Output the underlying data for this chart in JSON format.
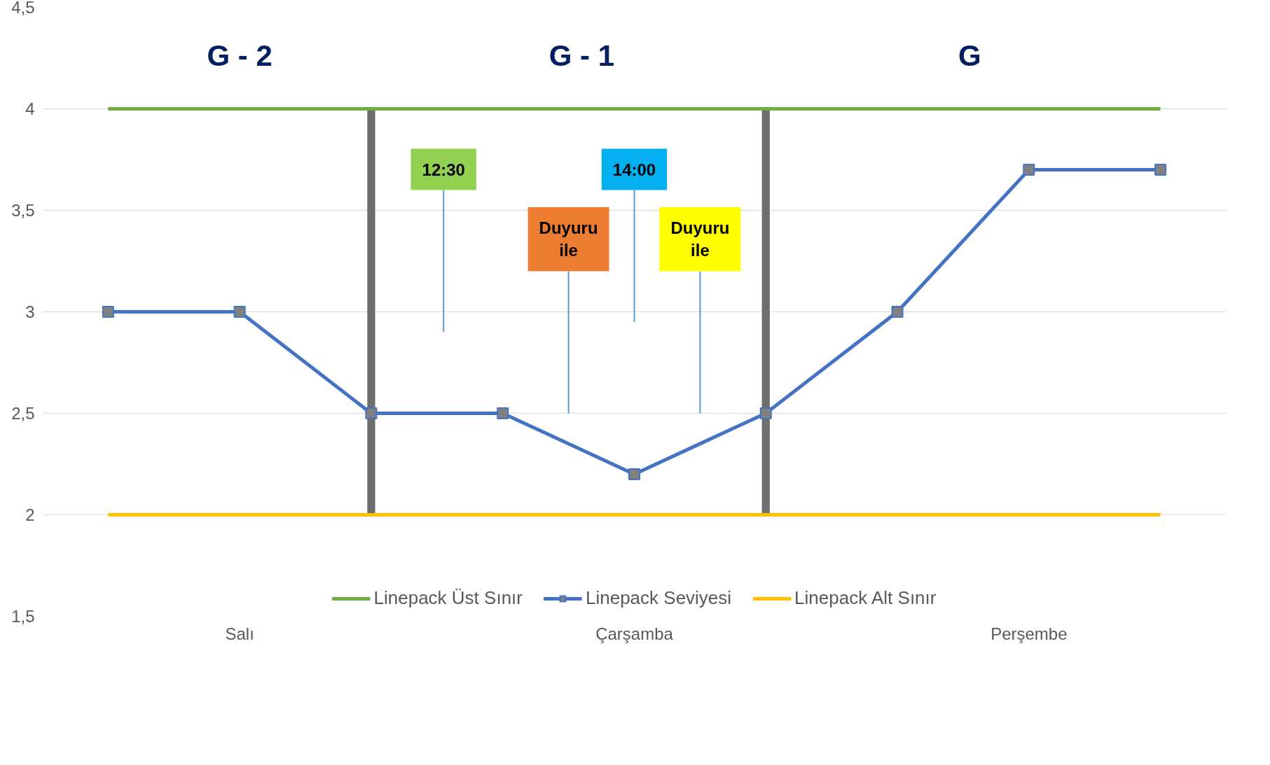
{
  "chart_data": {
    "type": "line",
    "categories": [
      null,
      "Salı",
      null,
      null,
      "Çarşamba",
      null,
      null,
      "Perşembe",
      null
    ],
    "ylim": [
      1.5,
      4.5
    ],
    "yticks": [
      {
        "value": 1.5,
        "label": "1,5"
      },
      {
        "value": 2,
        "label": "2"
      },
      {
        "value": 2.5,
        "label": "2,5"
      },
      {
        "value": 3,
        "label": "3"
      },
      {
        "value": 3.5,
        "label": "3,5"
      },
      {
        "value": 4,
        "label": "4"
      },
      {
        "value": 4.5,
        "label": "4,5"
      }
    ],
    "series": [
      {
        "name": "Linepack Üst Sınır",
        "color": "#70ad47",
        "values": [
          4,
          4,
          4,
          4,
          4,
          4,
          4,
          4,
          4
        ]
      },
      {
        "name": "Linepack Seviyesi",
        "color": "#4472c4",
        "marker": "square",
        "values": [
          3,
          3,
          2.5,
          2.5,
          2.2,
          2.5,
          3,
          3.7,
          3.7
        ]
      },
      {
        "name": "Linepack Alt Sınır",
        "color": "#ffc000",
        "values": [
          2,
          2,
          2,
          2,
          2,
          2,
          2,
          2,
          2
        ]
      },
      {
        "type": "bar",
        "color": "#6e6e6e",
        "values": [
          null,
          null,
          2,
          null,
          null,
          2,
          null,
          null,
          null
        ],
        "base": [
          null,
          null,
          2,
          null,
          null,
          2,
          null,
          null,
          null
        ]
      }
    ],
    "annotations": [
      "G - 2",
      "G - 1",
      "G",
      "12:30",
      "14:00",
      "Duyuru ile",
      "Duyuru ile"
    ],
    "grid": "y",
    "legend": "bottom",
    "marker": "none"
  }
}
